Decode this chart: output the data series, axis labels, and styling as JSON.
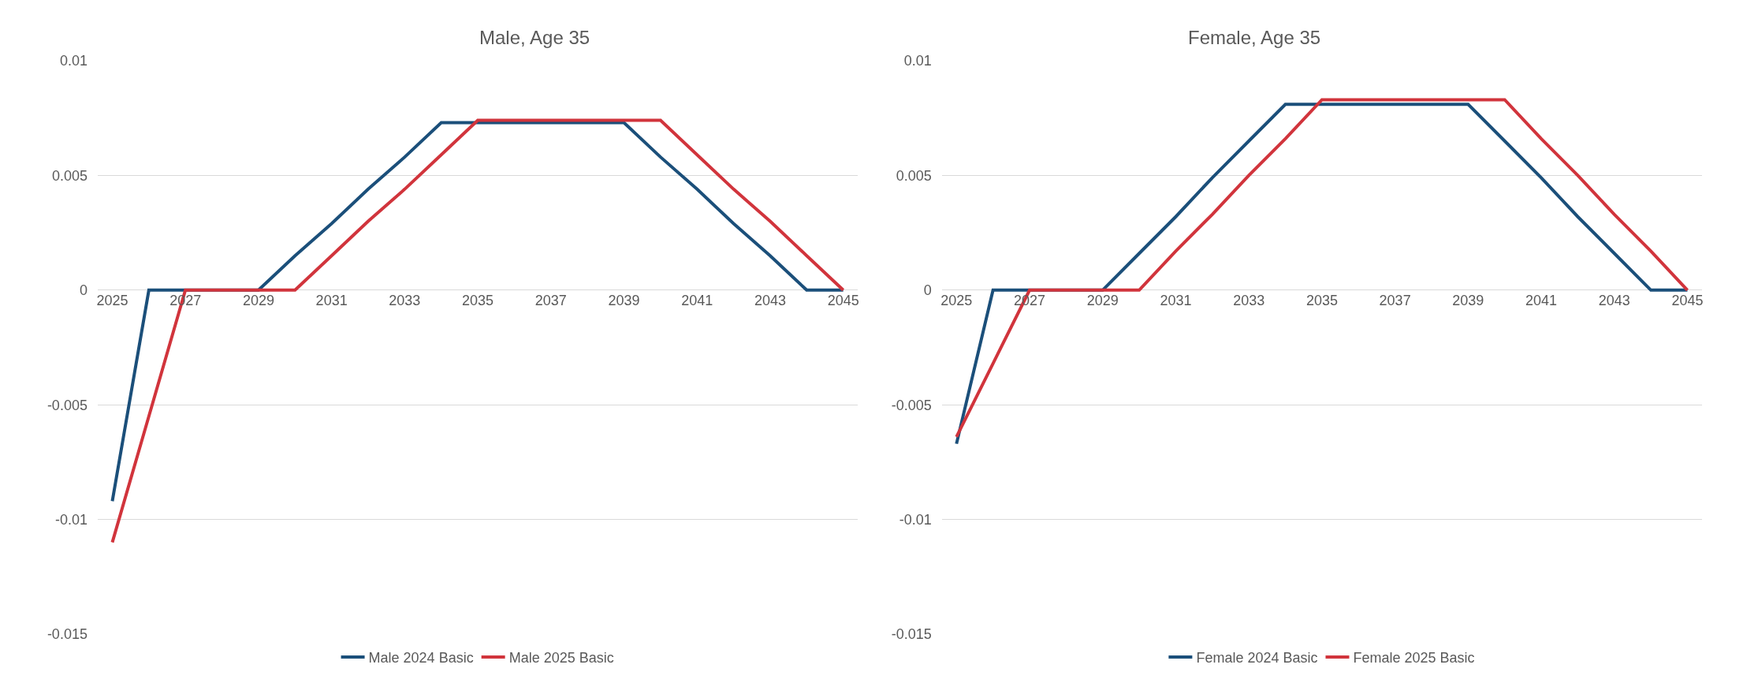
{
  "chart_data": [
    {
      "type": "line",
      "title": "Male, Age 35",
      "x": [
        2025,
        2026,
        2027,
        2028,
        2029,
        2030,
        2031,
        2032,
        2033,
        2034,
        2035,
        2036,
        2037,
        2038,
        2039,
        2040,
        2041,
        2042,
        2043,
        2044,
        2045
      ],
      "xlim": [
        2024.6,
        2045.4
      ],
      "xticks": [
        2025,
        2027,
        2029,
        2031,
        2033,
        2035,
        2037,
        2039,
        2041,
        2043,
        2045
      ],
      "ylim": [
        -0.015,
        0.01
      ],
      "yticks": [
        -0.015,
        -0.01,
        -0.005,
        0,
        0.005,
        0.01
      ],
      "grid": "y",
      "legend": "bottom",
      "series": [
        {
          "name": "Male 2024 Basic",
          "color": "#1b4f7a",
          "values": [
            -0.0092,
            0,
            0,
            0,
            0,
            0.0015,
            0.0029,
            0.0044,
            0.0058,
            0.0073,
            0.0073,
            0.0073,
            0.0073,
            0.0073,
            0.0073,
            0.0058,
            0.0044,
            0.0029,
            0.0015,
            0,
            0
          ]
        },
        {
          "name": "Male 2025 Basic",
          "color": "#d1343c",
          "values": [
            -0.011,
            -0.0055,
            0,
            0,
            0,
            0,
            0.0015,
            0.003,
            0.0044,
            0.0059,
            0.0074,
            0.0074,
            0.0074,
            0.0074,
            0.0074,
            0.0074,
            0.0059,
            0.0044,
            0.003,
            0.0015,
            0
          ]
        }
      ]
    },
    {
      "type": "line",
      "title": "Female, Age 35",
      "x": [
        2025,
        2026,
        2027,
        2028,
        2029,
        2030,
        2031,
        2032,
        2033,
        2034,
        2035,
        2036,
        2037,
        2038,
        2039,
        2040,
        2041,
        2042,
        2043,
        2044,
        2045
      ],
      "xlim": [
        2024.6,
        2045.4
      ],
      "xticks": [
        2025,
        2027,
        2029,
        2031,
        2033,
        2035,
        2037,
        2039,
        2041,
        2043,
        2045
      ],
      "ylim": [
        -0.015,
        0.01
      ],
      "yticks": [
        -0.015,
        -0.01,
        -0.005,
        0,
        0.005,
        0.01
      ],
      "grid": "y",
      "legend": "bottom",
      "series": [
        {
          "name": "Female 2024 Basic",
          "color": "#1b4f7a",
          "values": [
            -0.0067,
            0,
            0,
            0,
            0,
            0.0016,
            0.0032,
            0.0049,
            0.0065,
            0.0081,
            0.0081,
            0.0081,
            0.0081,
            0.0081,
            0.0081,
            0.0065,
            0.0049,
            0.0032,
            0.0016,
            0,
            0
          ]
        },
        {
          "name": "Female 2025 Basic",
          "color": "#d1343c",
          "values": [
            -0.0064,
            -0.0032,
            0,
            0,
            0,
            0,
            0.0017,
            0.0033,
            0.005,
            0.0066,
            0.0083,
            0.0083,
            0.0083,
            0.0083,
            0.0083,
            0.0083,
            0.0066,
            0.005,
            0.0033,
            0.0017,
            0
          ]
        }
      ]
    }
  ]
}
